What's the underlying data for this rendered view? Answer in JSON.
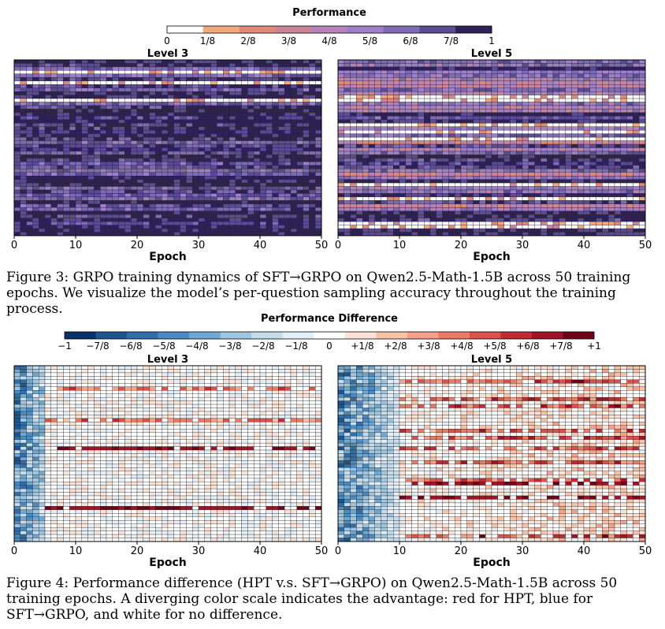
{
  "figure3": {
    "caption": "Figure 3: GRPO training dynamics of SFT→GRPO on Qwen2.5-Math-1.5B across 50 training epochs. We visualize the model’s per-question sampling accuracy throughout the training process."
  },
  "figure4": {
    "caption": "Figure 4: Performance difference (HPT v.s. SFT→GRPO) on Qwen2.5-Math-1.5B across 50 training epochs. A diverging color scale indicates the advantage: red for HPT, blue for SFT→GRPO, and white for no difference."
  },
  "chart_data": [
    {
      "type": "heatmap",
      "id": "fig3-level3",
      "title": "Level 3",
      "xlabel": "Epoch",
      "xlim": [
        0,
        50
      ],
      "xticks": [
        "0",
        "10",
        "20",
        "30",
        "40",
        "50"
      ],
      "rows": 50,
      "columns": 50,
      "mean_value": 0.86,
      "colorbar": {
        "title": "Performance",
        "labels": [
          "0",
          "1/8",
          "2/8",
          "3/8",
          "4/8",
          "5/8",
          "6/8",
          "7/8",
          "1"
        ],
        "colors": [
          "#ffffff",
          "#f4a97c",
          "#df8a78",
          "#cc8499",
          "#b583b9",
          "#9d80c8",
          "#7e6bb4",
          "#5b4a94",
          "#2f2157"
        ]
      }
    },
    {
      "type": "heatmap",
      "id": "fig3-level5",
      "title": "Level 5",
      "xlabel": "Epoch",
      "xlim": [
        0,
        50
      ],
      "xticks": [
        "0",
        "10",
        "20",
        "30",
        "40",
        "50"
      ],
      "rows": 50,
      "columns": 50,
      "mean_value": 0.7,
      "colorbar": "shared with fig3-level3"
    },
    {
      "type": "heatmap",
      "id": "fig4-level3",
      "title": "Level 3",
      "xlabel": "Epoch",
      "xlim": [
        0,
        50
      ],
      "xticks": [
        "0",
        "10",
        "20",
        "30",
        "40",
        "50"
      ],
      "rows": 50,
      "columns": 50,
      "pattern": "blue advantage in early epochs (0-5), mostly near zero afterwards, sparse red rows",
      "colorbar": {
        "title": "Performance Difference",
        "labels": [
          "−1",
          "−7/8",
          "−6/8",
          "−5/8",
          "−4/8",
          "−3/8",
          "−2/8",
          "−1/8",
          "0",
          "+1/8",
          "+2/8",
          "+3/8",
          "+4/8",
          "+5/8",
          "+6/8",
          "+7/8",
          "+1"
        ],
        "colors": [
          "#08306b",
          "#1c5590",
          "#2f6ea8",
          "#4a8bc2",
          "#6ea7d1",
          "#9ec6e0",
          "#c4dcec",
          "#e3eef7",
          "#ffffff",
          "#fde3d6",
          "#f9c3aa",
          "#f4a08a",
          "#ea7b64",
          "#d9524b",
          "#bf2a33",
          "#a01426",
          "#6e0318"
        ]
      }
    },
    {
      "type": "heatmap",
      "id": "fig4-level5",
      "title": "Level 5",
      "xlabel": "Epoch",
      "xlim": [
        0,
        50
      ],
      "xticks": [
        "0",
        "10",
        "20",
        "30",
        "40",
        "50"
      ],
      "rows": 50,
      "columns": 50,
      "pattern": "blue advantage in early epochs (0-10), increasingly red in later epochs",
      "colorbar": "shared with fig4-level3"
    }
  ]
}
